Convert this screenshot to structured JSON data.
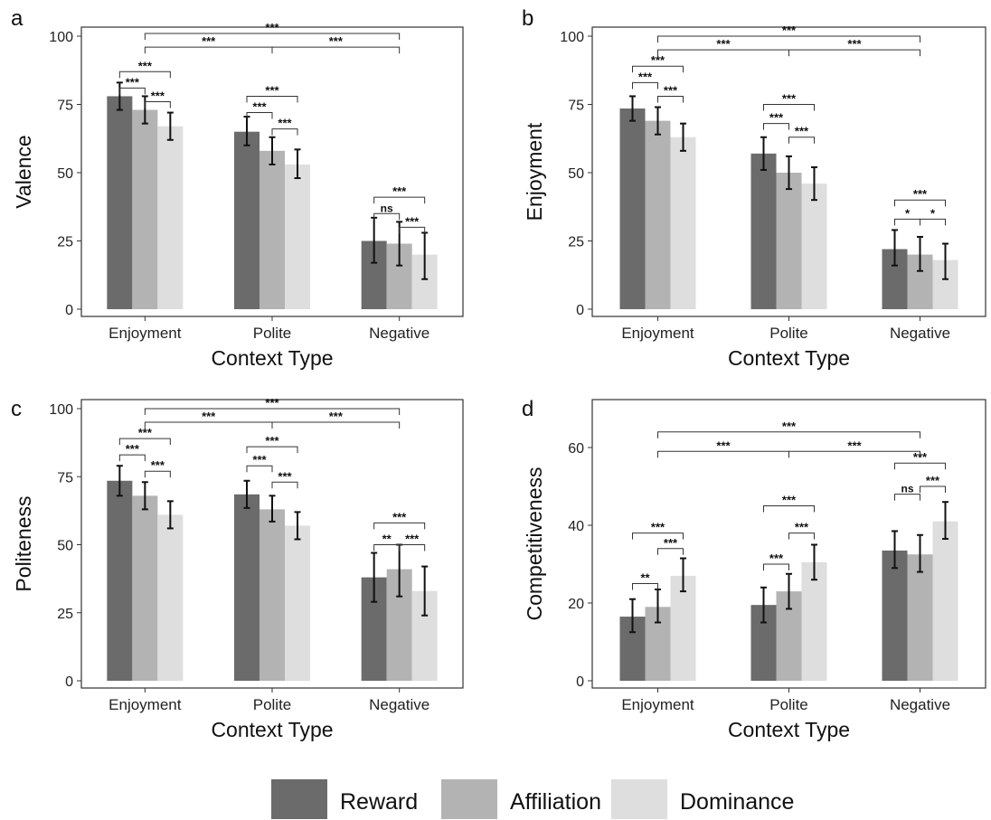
{
  "colors": {
    "reward": "#6b6b6b",
    "affiliation": "#b3b3b3",
    "dominance": "#dedede",
    "axis": "#333333"
  },
  "legend": {
    "items": [
      {
        "label": "Reward",
        "color": "#6b6b6b"
      },
      {
        "label": "Affiliation",
        "color": "#b3b3b3"
      },
      {
        "label": "Dominance",
        "color": "#dedede"
      }
    ]
  },
  "chart_data": [
    {
      "panel": "a",
      "type": "bar",
      "xlabel": "Context Type",
      "ylabel": "Valence",
      "categories": [
        "Enjoyment",
        "Polite",
        "Negative"
      ],
      "ylim": [
        0,
        100
      ],
      "yticks": [
        0,
        25,
        50,
        75,
        100
      ],
      "series": [
        {
          "name": "Reward",
          "values": [
            78,
            65,
            25
          ],
          "err": [
            [
              73,
              83
            ],
            [
              60,
              70.5
            ],
            [
              17,
              33.5
            ]
          ]
        },
        {
          "name": "Affiliation",
          "values": [
            73,
            58,
            24
          ],
          "err": [
            [
              68,
              78
            ],
            [
              53,
              63
            ],
            [
              16,
              32
            ]
          ]
        },
        {
          "name": "Dominance",
          "values": [
            67,
            53,
            20
          ],
          "err": [
            [
              62,
              72
            ],
            [
              48,
              58.5
            ],
            [
              11,
              28
            ]
          ]
        }
      ],
      "annotations": [
        {
          "label": "***",
          "from": [
            0,
            0
          ],
          "to": [
            0,
            1
          ],
          "y": 81
        },
        {
          "label": "***",
          "from": [
            0,
            0
          ],
          "to": [
            0,
            2
          ],
          "y": 87
        },
        {
          "label": "***",
          "from": [
            0,
            1
          ],
          "to": [
            0,
            2
          ],
          "y": 76
        },
        {
          "label": "***",
          "from": [
            1,
            0
          ],
          "to": [
            1,
            1
          ],
          "y": 72
        },
        {
          "label": "***",
          "from": [
            1,
            0
          ],
          "to": [
            1,
            2
          ],
          "y": 78
        },
        {
          "label": "***",
          "from": [
            1,
            1
          ],
          "to": [
            1,
            2
          ],
          "y": 66
        },
        {
          "label": "ns",
          "from": [
            2,
            0
          ],
          "to": [
            2,
            1
          ],
          "y": 35
        },
        {
          "label": "***",
          "from": [
            2,
            0
          ],
          "to": [
            2,
            2
          ],
          "y": 41
        },
        {
          "label": "***",
          "from": [
            2,
            1
          ],
          "to": [
            2,
            2
          ],
          "y": 30
        },
        {
          "label": "***",
          "from": [
            0
          ],
          "to": [
            1
          ],
          "y": 96
        },
        {
          "label": "***",
          "from": [
            1
          ],
          "to": [
            2
          ],
          "y": 96
        },
        {
          "label": "***",
          "from": [
            0
          ],
          "to": [
            2
          ],
          "y": 101
        }
      ]
    },
    {
      "panel": "b",
      "type": "bar",
      "xlabel": "Context Type",
      "ylabel": "Enjoyment",
      "categories": [
        "Enjoyment",
        "Polite",
        "Negative"
      ],
      "ylim": [
        0,
        100
      ],
      "yticks": [
        0,
        25,
        50,
        75,
        100
      ],
      "series": [
        {
          "name": "Reward",
          "values": [
            73.5,
            57,
            22
          ],
          "err": [
            [
              69,
              78
            ],
            [
              51,
              63
            ],
            [
              16,
              29
            ]
          ]
        },
        {
          "name": "Affiliation",
          "values": [
            69,
            50,
            20
          ],
          "err": [
            [
              64,
              74
            ],
            [
              44,
              56
            ],
            [
              14,
              26.5
            ]
          ]
        },
        {
          "name": "Dominance",
          "values": [
            63,
            46,
            18
          ],
          "err": [
            [
              58,
              68
            ],
            [
              40,
              52
            ],
            [
              11,
              24
            ]
          ]
        }
      ],
      "annotations": [
        {
          "label": "***",
          "from": [
            0,
            0
          ],
          "to": [
            0,
            1
          ],
          "y": 83
        },
        {
          "label": "***",
          "from": [
            0,
            0
          ],
          "to": [
            0,
            2
          ],
          "y": 89
        },
        {
          "label": "***",
          "from": [
            0,
            1
          ],
          "to": [
            0,
            2
          ],
          "y": 78
        },
        {
          "label": "***",
          "from": [
            1,
            0
          ],
          "to": [
            1,
            1
          ],
          "y": 68
        },
        {
          "label": "***",
          "from": [
            1,
            0
          ],
          "to": [
            1,
            2
          ],
          "y": 75
        },
        {
          "label": "***",
          "from": [
            1,
            1
          ],
          "to": [
            1,
            2
          ],
          "y": 63
        },
        {
          "label": "*",
          "from": [
            2,
            0
          ],
          "to": [
            2,
            1
          ],
          "y": 33
        },
        {
          "label": "***",
          "from": [
            2,
            0
          ],
          "to": [
            2,
            2
          ],
          "y": 40
        },
        {
          "label": "*",
          "from": [
            2,
            1
          ],
          "to": [
            2,
            2
          ],
          "y": 33
        },
        {
          "label": "***",
          "from": [
            0
          ],
          "to": [
            1
          ],
          "y": 95
        },
        {
          "label": "***",
          "from": [
            1
          ],
          "to": [
            2
          ],
          "y": 95
        },
        {
          "label": "***",
          "from": [
            0
          ],
          "to": [
            2
          ],
          "y": 100
        }
      ]
    },
    {
      "panel": "c",
      "type": "bar",
      "xlabel": "Context Type",
      "ylabel": "Politeness",
      "categories": [
        "Enjoyment",
        "Polite",
        "Negative"
      ],
      "ylim": [
        0,
        100
      ],
      "yticks": [
        0,
        25,
        50,
        75,
        100
      ],
      "series": [
        {
          "name": "Reward",
          "values": [
            73.5,
            68.5,
            38
          ],
          "err": [
            [
              68,
              79
            ],
            [
              63.5,
              73.5
            ],
            [
              29,
              47
            ]
          ]
        },
        {
          "name": "Affiliation",
          "values": [
            68,
            63,
            41
          ],
          "err": [
            [
              63,
              73
            ],
            [
              58.5,
              68
            ],
            [
              31,
              50
            ]
          ]
        },
        {
          "name": "Dominance",
          "values": [
            61,
            57,
            33
          ],
          "err": [
            [
              56,
              66
            ],
            [
              52,
              62
            ],
            [
              24,
              42
            ]
          ]
        }
      ],
      "annotations": [
        {
          "label": "***",
          "from": [
            0,
            0
          ],
          "to": [
            0,
            1
          ],
          "y": 83
        },
        {
          "label": "***",
          "from": [
            0,
            0
          ],
          "to": [
            0,
            2
          ],
          "y": 89
        },
        {
          "label": "***",
          "from": [
            0,
            1
          ],
          "to": [
            0,
            2
          ],
          "y": 77
        },
        {
          "label": "***",
          "from": [
            1,
            0
          ],
          "to": [
            1,
            1
          ],
          "y": 79
        },
        {
          "label": "***",
          "from": [
            1,
            0
          ],
          "to": [
            1,
            2
          ],
          "y": 86
        },
        {
          "label": "***",
          "from": [
            1,
            1
          ],
          "to": [
            1,
            2
          ],
          "y": 73
        },
        {
          "label": "**",
          "from": [
            2,
            0
          ],
          "to": [
            2,
            1
          ],
          "y": 50
        },
        {
          "label": "***",
          "from": [
            2,
            0
          ],
          "to": [
            2,
            2
          ],
          "y": 58
        },
        {
          "label": "***",
          "from": [
            2,
            1
          ],
          "to": [
            2,
            2
          ],
          "y": 50
        },
        {
          "label": "***",
          "from": [
            0
          ],
          "to": [
            1
          ],
          "y": 95
        },
        {
          "label": "***",
          "from": [
            1
          ],
          "to": [
            2
          ],
          "y": 95
        },
        {
          "label": "***",
          "from": [
            0
          ],
          "to": [
            2
          ],
          "y": 100
        }
      ]
    },
    {
      "panel": "d",
      "type": "bar",
      "xlabel": "Context Type",
      "ylabel": "Competitiveness",
      "categories": [
        "Enjoyment",
        "Polite",
        "Negative"
      ],
      "ylim": [
        0,
        70
      ],
      "yticks": [
        0,
        20,
        40,
        60
      ],
      "series": [
        {
          "name": "Reward",
          "values": [
            16.5,
            19.5,
            33.5
          ],
          "err": [
            [
              12.5,
              21
            ],
            [
              15,
              24
            ],
            [
              29,
              38.5
            ]
          ]
        },
        {
          "name": "Affiliation",
          "values": [
            19,
            23,
            32.5
          ],
          "err": [
            [
              15,
              23.5
            ],
            [
              18.5,
              27.5
            ],
            [
              28,
              37.5
            ]
          ]
        },
        {
          "name": "Dominance",
          "values": [
            27,
            30.5,
            41
          ],
          "err": [
            [
              23,
              31.5
            ],
            [
              26,
              35
            ],
            [
              36.5,
              46
            ]
          ]
        }
      ],
      "annotations": [
        {
          "label": "**",
          "from": [
            0,
            0
          ],
          "to": [
            0,
            1
          ],
          "y": 25
        },
        {
          "label": "***",
          "from": [
            0,
            0
          ],
          "to": [
            0,
            2
          ],
          "y": 38
        },
        {
          "label": "***",
          "from": [
            0,
            1
          ],
          "to": [
            0,
            2
          ],
          "y": 34
        },
        {
          "label": "***",
          "from": [
            1,
            0
          ],
          "to": [
            1,
            1
          ],
          "y": 30
        },
        {
          "label": "***",
          "from": [
            1,
            0
          ],
          "to": [
            1,
            2
          ],
          "y": 45
        },
        {
          "label": "***",
          "from": [
            1,
            1
          ],
          "to": [
            1,
            2
          ],
          "y": 38
        },
        {
          "label": "ns",
          "from": [
            2,
            0
          ],
          "to": [
            2,
            1
          ],
          "y": 48
        },
        {
          "label": "***",
          "from": [
            2,
            0
          ],
          "to": [
            2,
            2
          ],
          "y": 56
        },
        {
          "label": "***",
          "from": [
            2,
            1
          ],
          "to": [
            2,
            2
          ],
          "y": 50
        },
        {
          "label": "***",
          "from": [
            0
          ],
          "to": [
            1
          ],
          "y": 59
        },
        {
          "label": "***",
          "from": [
            1
          ],
          "to": [
            2
          ],
          "y": 59
        },
        {
          "label": "***",
          "from": [
            0
          ],
          "to": [
            2
          ],
          "y": 64
        }
      ]
    }
  ]
}
